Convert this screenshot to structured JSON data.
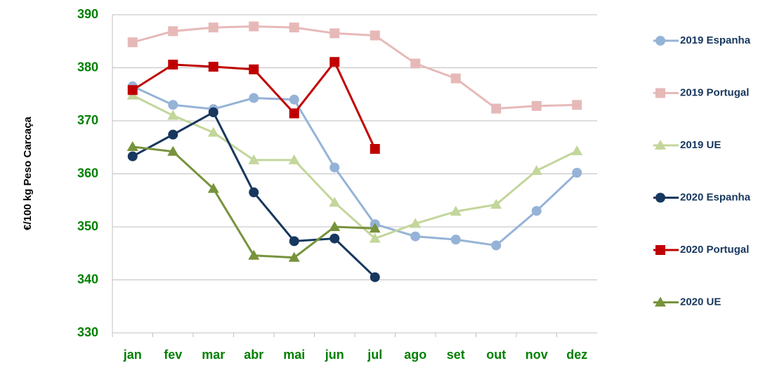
{
  "chart_data": {
    "type": "line",
    "y_label": "€/100 kg Peso Carcaça",
    "categories": [
      "jan",
      "fev",
      "mar",
      "abr",
      "mai",
      "jun",
      "jul",
      "ago",
      "set",
      "out",
      "nov",
      "dez"
    ],
    "series": [
      {
        "name": "2019 Espanha",
        "color": "#95b3d7",
        "marker": "circle",
        "values": [
          376.5,
          373,
          372.2,
          374.3,
          374,
          361.2,
          350.5,
          348.2,
          347.6,
          346.5,
          353,
          360.2
        ]
      },
      {
        "name": "2019 Portugal",
        "color": "#e6b9b8",
        "marker": "square",
        "values": [
          384.8,
          386.9,
          387.6,
          387.8,
          387.6,
          386.5,
          386.1,
          380.8,
          378,
          372.3,
          372.8,
          373
        ]
      },
      {
        "name": "2019 UE",
        "color": "#c3d69b",
        "marker": "triangle",
        "values": [
          374.8,
          371,
          367.8,
          362.6,
          362.6,
          354.6,
          347.8,
          350.6,
          352.9,
          354.2,
          360.6,
          364.3
        ]
      },
      {
        "name": "2020 Espanha",
        "color": "#17375e",
        "marker": "circle",
        "values": [
          363.3,
          367.4,
          371.6,
          356.5,
          347.3,
          347.8,
          340.5,
          null,
          null,
          null,
          null,
          null
        ]
      },
      {
        "name": "2020 Portugal",
        "color": "#c00000",
        "marker": "square",
        "values": [
          375.8,
          380.6,
          380.2,
          379.7,
          371.4,
          381.1,
          364.7,
          null,
          null,
          null,
          null,
          null
        ]
      },
      {
        "name": "2020 UE",
        "color": "#77933c",
        "marker": "triangle",
        "values": [
          365.1,
          364.2,
          357.2,
          344.6,
          344.2,
          350,
          349.7,
          null,
          null,
          null,
          null,
          null
        ]
      }
    ],
    "ylim": [
      330,
      390
    ],
    "yticks": [
      330,
      340,
      350,
      360,
      370,
      380,
      390
    ],
    "grid": true,
    "legend": "right"
  }
}
